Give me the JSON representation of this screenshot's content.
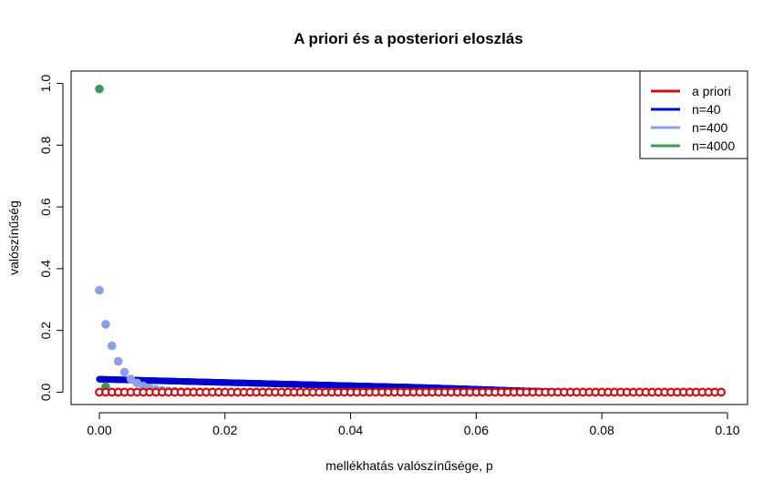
{
  "chart_data": {
    "type": "scatter",
    "title": "A priori és a posteriori eloszlás",
    "xlabel": "mellékhatás valószínűsége, p",
    "ylabel": "valószínűség",
    "xlim": [
      -0.0045,
      0.1032
    ],
    "ylim": [
      -0.04,
      1.04
    ],
    "x_ticks": [
      {
        "value": 0.0,
        "label": "0.00"
      },
      {
        "value": 0.02,
        "label": "0.02"
      },
      {
        "value": 0.04,
        "label": "0.04"
      },
      {
        "value": 0.06,
        "label": "0.06"
      },
      {
        "value": 0.08,
        "label": "0.08"
      },
      {
        "value": 0.1,
        "label": "0.10"
      }
    ],
    "y_ticks": [
      {
        "value": 0.0,
        "label": "0.0"
      },
      {
        "value": 0.2,
        "label": "0.2"
      },
      {
        "value": 0.4,
        "label": "0.4"
      },
      {
        "value": 0.6,
        "label": "0.6"
      },
      {
        "value": 0.8,
        "label": "0.8"
      },
      {
        "value": 1.0,
        "label": "1.0"
      }
    ],
    "grid": false,
    "legend_position": "top-right",
    "series": [
      {
        "name": "n=40",
        "color": "#0000cd",
        "x_start": 0.0,
        "x_step": 0.0001,
        "x_end": 0.0749,
        "y_values": [
          0.042,
          0.038,
          0.034,
          0.03,
          0.026,
          0.021,
          0.016,
          0.011,
          0.006,
          0.003,
          0.0
        ],
        "y_at_x": [
          0.0,
          0.0075,
          0.015,
          0.0225,
          0.03,
          0.04,
          0.05,
          0.058,
          0.065,
          0.07,
          0.0749
        ]
      },
      {
        "name": "n=400",
        "color": "#87a0e8",
        "x": [
          0.0,
          0.001,
          0.002,
          0.003,
          0.004,
          0.005,
          0.006,
          0.007,
          0.008,
          0.009,
          0.01,
          0.011,
          0.012,
          0.013,
          0.014,
          0.015,
          0.016,
          0.017,
          0.018,
          0.019,
          0.02
        ],
        "values": [
          0.33,
          0.22,
          0.15,
          0.1,
          0.065,
          0.043,
          0.03,
          0.02,
          0.013,
          0.009,
          0.006,
          0.004,
          0.003,
          0.002,
          0.0015,
          0.001,
          0.0007,
          0.0005,
          0.0003,
          0.0002,
          0.0001
        ]
      },
      {
        "name": "n=4000",
        "color": "#3a9a5a",
        "x": [
          0.0,
          0.001,
          0.002,
          0.003
        ],
        "values": [
          0.982,
          0.018,
          0.0003,
          0.0
        ]
      },
      {
        "name": "a priori",
        "color": "#d01010",
        "x_start": 0.0,
        "x_step": 0.001,
        "x_end": 0.099,
        "value": 0.0
      }
    ],
    "legend": [
      {
        "label": "a priori",
        "color": "#d01010"
      },
      {
        "label": "n=40",
        "color": "#0000cd"
      },
      {
        "label": "n=400",
        "color": "#87a0e8"
      },
      {
        "label": "n=4000",
        "color": "#3a9a5a"
      }
    ]
  }
}
